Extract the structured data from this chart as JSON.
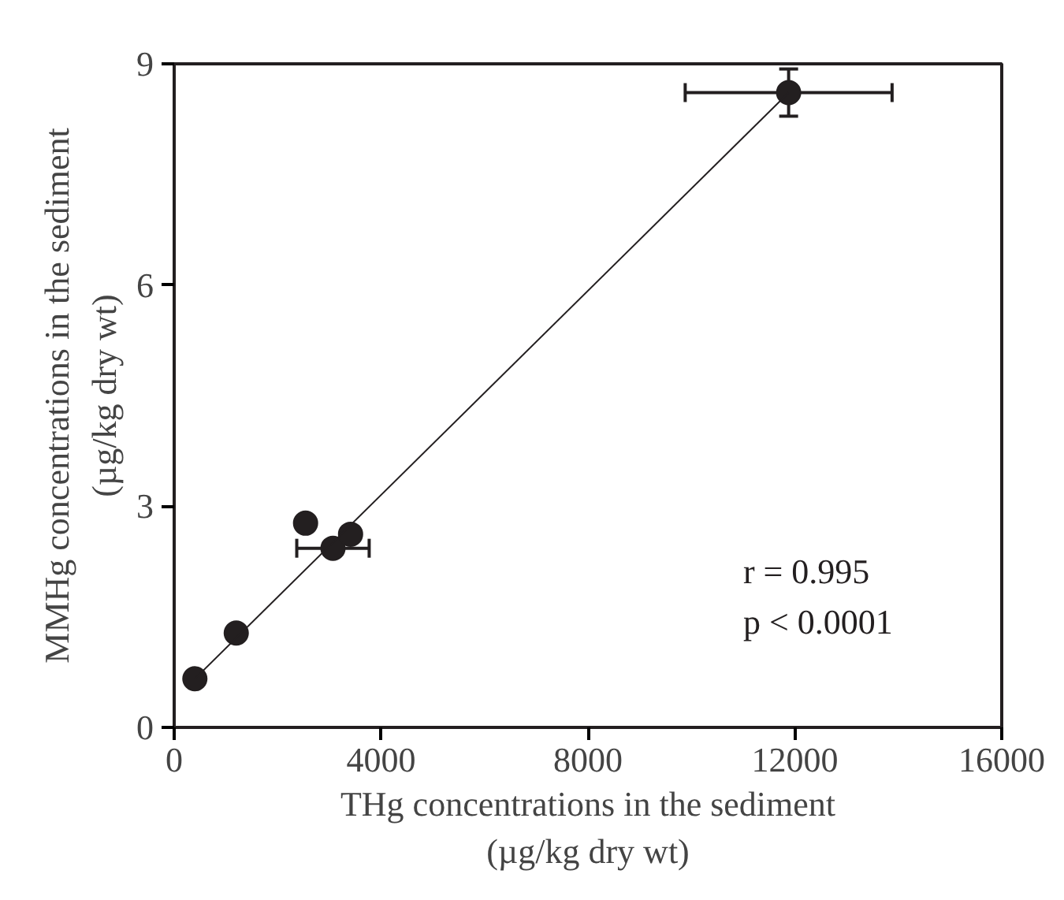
{
  "chart_data": {
    "type": "scatter",
    "xlabel": "THg concentrations in the sediment\n(µg/kg dry wt)",
    "ylabel": "MMHg concentrations in the sediment\n(µg/kg dry wt)",
    "xlim": [
      0,
      16000
    ],
    "xticks": [
      0,
      4000,
      8000,
      12000,
      16000
    ],
    "ylim": [
      0,
      9
    ],
    "yticks": [
      0,
      3,
      6,
      9
    ],
    "grid": false,
    "series": [
      {
        "marker": "circle",
        "color": "#231f20",
        "x": [
          400,
          1200,
          2540,
          3070,
          3410,
          11880
        ],
        "values": [
          0.66,
          1.28,
          2.77,
          2.43,
          2.62,
          8.61
        ],
        "xerrors": [
          null,
          null,
          null,
          700,
          null,
          2000
        ],
        "errors": [
          null,
          null,
          null,
          null,
          null,
          0.32
        ]
      },
      {
        "type": "line",
        "color": "#231f20",
        "x": [
          400,
          11880
        ],
        "values": [
          0.66,
          8.61
        ]
      }
    ],
    "annotations": [
      {
        "text": "r = 0.995"
      },
      {
        "text": "p < 0.0001"
      }
    ]
  }
}
